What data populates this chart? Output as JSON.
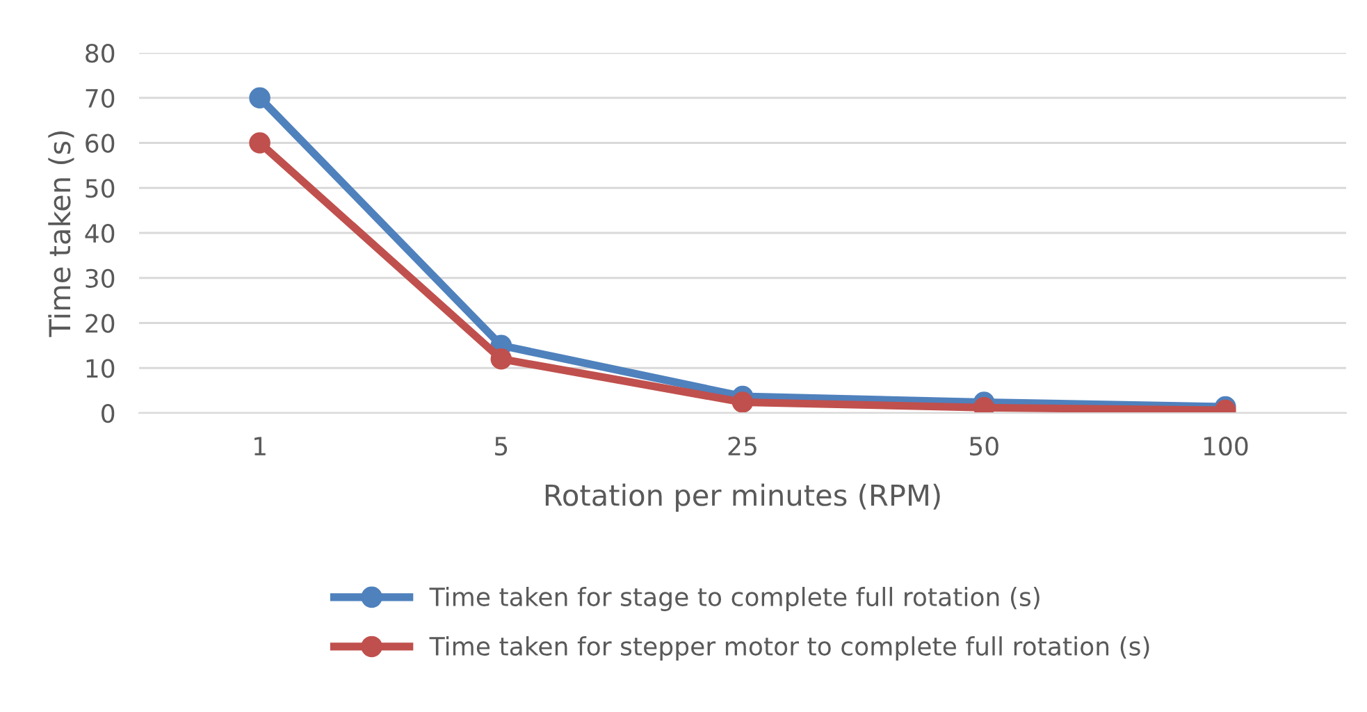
{
  "chart_data": {
    "type": "line",
    "xlabel": "Rotation per minutes (RPM)",
    "ylabel": "Time taken (s)",
    "categories": [
      "1",
      "5",
      "25",
      "50",
      "100"
    ],
    "series": [
      {
        "name": "Time taken for stage to complete full rotation (s)",
        "color": "#4f81bd",
        "values": [
          70,
          15,
          3.7,
          2.4,
          1.4
        ]
      },
      {
        "name": "Time taken for stepper motor to complete full rotation (s)",
        "color": "#c0504d",
        "values": [
          60,
          12,
          2.4,
          1.2,
          0.6
        ]
      }
    ],
    "ylim": [
      0,
      80
    ],
    "yticks": [
      0,
      10,
      20,
      30,
      40,
      50,
      60,
      70,
      80
    ],
    "grid": "y",
    "legend": "bottom",
    "marker": "circle",
    "line_style": "solid"
  }
}
